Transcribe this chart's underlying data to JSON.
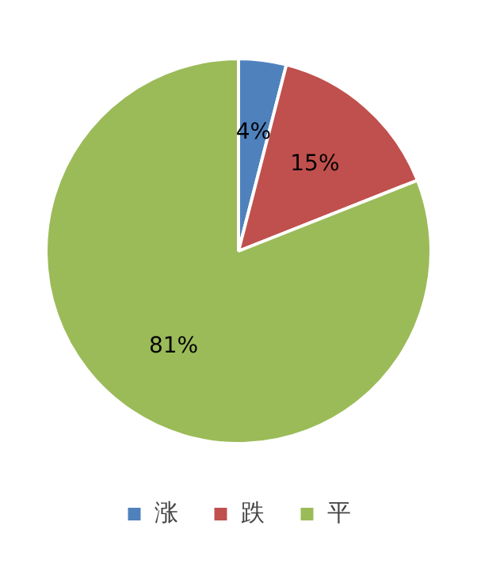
{
  "chart_data": {
    "type": "pie",
    "categories": [
      "涨",
      "跌",
      "平"
    ],
    "values": [
      4,
      15,
      81
    ],
    "colors": [
      "#4f81bd",
      "#c0504d",
      "#9bbb59"
    ],
    "value_labels": [
      "4%",
      "15%",
      "81%"
    ],
    "legend": "bottom"
  }
}
